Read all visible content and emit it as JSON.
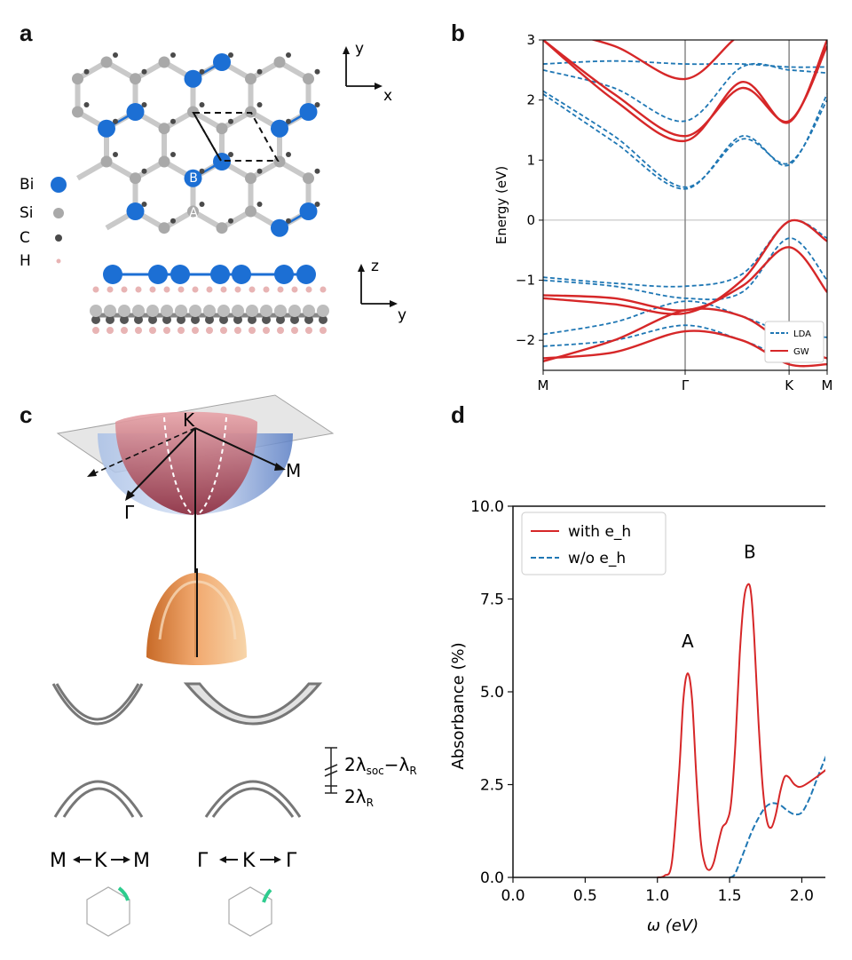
{
  "panels": {
    "a": {
      "label": "a",
      "legend": [
        {
          "label": "Bi",
          "color": "#1c6fd4"
        },
        {
          "label": "Si",
          "color": "#a9a9a9"
        },
        {
          "label": "C",
          "color": "#4a4a4a"
        },
        {
          "label": "H",
          "color": "#e8b4b4"
        }
      ],
      "site_labels": [
        "B",
        "A"
      ],
      "axes_top": {
        "vertical": "y",
        "horizontal": "x"
      },
      "axes_side": {
        "vertical": "z",
        "horizontal": "y"
      }
    },
    "b": {
      "label": "b"
    },
    "c": {
      "label": "c",
      "cone_labels": {
        "top": "K",
        "right": "M",
        "left": "Γ"
      },
      "path_left": {
        "l": "M",
        "c": "K",
        "r": "M"
      },
      "path_right": {
        "l": "Γ",
        "c": "K",
        "r": "Γ"
      },
      "gap_labels": {
        "upper_base": "2λ",
        "upper_sub": "soc",
        "upper_mid": "−λ",
        "upper_sub2": "R",
        "lower_base": "2λ",
        "lower_sub": "R"
      }
    },
    "d": {
      "label": "d"
    }
  },
  "chart_data": [
    {
      "panel": "b",
      "type": "line",
      "ylabel": "Energy (eV)",
      "ylim": [
        -2.5,
        3
      ],
      "yticks": [
        "−2",
        "−1",
        "0",
        "1",
        "2",
        "3"
      ],
      "ytick_values": [
        -2,
        -1,
        0,
        1,
        2,
        3
      ],
      "xticks": [
        "M",
        "Γ",
        "K",
        "M"
      ],
      "xtick_positions": [
        0,
        0.5,
        0.866,
        1.0
      ],
      "legend": [
        "LDA",
        "GW"
      ],
      "series": [
        {
          "name": "GW",
          "style": "solid",
          "color": "#d62728",
          "bands": [
            {
              "x": [
                0,
                0.25,
                0.5,
                0.7,
                0.866,
                1.0
              ],
              "y": [
                -1.3,
                -1.4,
                -1.55,
                -1.0,
                -0.02,
                -0.35
              ]
            },
            {
              "x": [
                0,
                0.25,
                0.5,
                0.7,
                0.866,
                1.0
              ],
              "y": [
                -1.25,
                -1.3,
                -1.5,
                -1.1,
                -0.45,
                -1.2
              ]
            },
            {
              "x": [
                0,
                0.25,
                0.5,
                0.7,
                0.866,
                1.0
              ],
              "y": [
                -2.35,
                -2.0,
                -1.5,
                -1.6,
                -2.1,
                -2.3
              ]
            },
            {
              "x": [
                0,
                0.25,
                0.5,
                0.7,
                0.866,
                1.0
              ],
              "y": [
                -2.3,
                -2.2,
                -1.85,
                -2.0,
                -2.4,
                -2.4
              ]
            },
            {
              "x": [
                0,
                0.25,
                0.5,
                0.7,
                0.866,
                1.0
              ],
              "y": [
                3.0,
                2.0,
                1.32,
                2.3,
                1.63,
                3.0
              ]
            },
            {
              "x": [
                0,
                0.25,
                0.5,
                0.7,
                0.866,
                1.0
              ],
              "y": [
                3.0,
                2.1,
                1.4,
                2.2,
                1.65,
                2.9
              ]
            },
            {
              "x": [
                0,
                0.25,
                0.5,
                0.7,
                0.866,
                1.0
              ],
              "y": [
                3.2,
                2.9,
                2.35,
                3.1,
                3.2,
                3.2
              ]
            }
          ]
        },
        {
          "name": "LDA",
          "style": "dashed",
          "color": "#1f77b4",
          "bands": [
            {
              "x": [
                0,
                0.25,
                0.5,
                0.7,
                0.866,
                1.0
              ],
              "y": [
                -0.95,
                -1.05,
                -1.1,
                -0.9,
                -0.02,
                -0.3
              ]
            },
            {
              "x": [
                0,
                0.25,
                0.5,
                0.7,
                0.866,
                1.0
              ],
              "y": [
                -1.0,
                -1.1,
                -1.3,
                -1.2,
                -0.3,
                -1.0
              ]
            },
            {
              "x": [
                0,
                0.25,
                0.5,
                0.7,
                0.866,
                1.0
              ],
              "y": [
                -1.9,
                -1.7,
                -1.35,
                -1.6,
                -1.9,
                -1.95
              ]
            },
            {
              "x": [
                0,
                0.25,
                0.5,
                0.7,
                0.866,
                1.0
              ],
              "y": [
                -2.1,
                -2.0,
                -1.75,
                -2.0,
                -2.3,
                -2.3
              ]
            },
            {
              "x": [
                0,
                0.25,
                0.5,
                0.7,
                0.866,
                1.0
              ],
              "y": [
                2.1,
                1.3,
                0.52,
                1.4,
                0.92,
                2.1
              ]
            },
            {
              "x": [
                0,
                0.25,
                0.5,
                0.7,
                0.866,
                1.0
              ],
              "y": [
                2.15,
                1.4,
                0.55,
                1.35,
                0.95,
                2.0
              ]
            },
            {
              "x": [
                0,
                0.25,
                0.5,
                0.7,
                0.866,
                1.0
              ],
              "y": [
                2.5,
                2.2,
                1.65,
                2.55,
                2.5,
                2.45
              ]
            },
            {
              "x": [
                0,
                0.25,
                0.5,
                0.7,
                0.866,
                1.0
              ],
              "y": [
                2.6,
                2.65,
                2.6,
                2.6,
                2.55,
                2.55
              ]
            }
          ]
        }
      ]
    },
    {
      "panel": "d",
      "type": "line",
      "xlabel": "ω (eV)",
      "ylabel": "Absorbance (%)",
      "xlim": [
        0.0,
        2.2
      ],
      "ylim": [
        0.0,
        10.0
      ],
      "xticks": [
        "0.0",
        "0.5",
        "1.0",
        "1.5",
        "2.0"
      ],
      "xtick_values": [
        0.0,
        0.5,
        1.0,
        1.5,
        2.0
      ],
      "yticks": [
        "0.0",
        "2.5",
        "5.0",
        "7.5",
        "10.0"
      ],
      "ytick_values": [
        0.0,
        2.5,
        5.0,
        7.5,
        10.0
      ],
      "annotations": [
        {
          "text": "A",
          "x": 1.21,
          "y": 6.2
        },
        {
          "text": "B",
          "x": 1.64,
          "y": 8.6
        }
      ],
      "series": [
        {
          "name": "with e_h",
          "style": "solid",
          "color": "#d62728",
          "x": [
            1.0,
            1.05,
            1.1,
            1.15,
            1.18,
            1.21,
            1.24,
            1.27,
            1.3,
            1.33,
            1.36,
            1.39,
            1.42,
            1.45,
            1.48,
            1.51,
            1.54,
            1.57,
            1.6,
            1.63,
            1.65,
            1.67,
            1.7,
            1.73,
            1.76,
            1.79,
            1.82,
            1.85,
            1.88,
            1.91,
            1.95,
            2.0,
            2.1,
            2.2
          ],
          "y": [
            0.0,
            0.05,
            0.4,
            2.8,
            4.8,
            5.5,
            4.8,
            2.7,
            1.0,
            0.35,
            0.2,
            0.4,
            0.9,
            1.35,
            1.5,
            2.0,
            3.6,
            6.0,
            7.5,
            7.9,
            7.6,
            6.5,
            4.2,
            2.4,
            1.5,
            1.35,
            1.7,
            2.3,
            2.7,
            2.7,
            2.5,
            2.45,
            2.7,
            3.0
          ]
        },
        {
          "name": "w/o e_h",
          "style": "dashed",
          "color": "#1f77b4",
          "x": [
            1.5,
            1.53,
            1.56,
            1.6,
            1.65,
            1.7,
            1.75,
            1.8,
            1.85,
            1.9,
            1.95,
            2.0,
            2.05,
            2.1,
            2.15,
            2.2
          ],
          "y": [
            0.0,
            0.05,
            0.3,
            0.7,
            1.2,
            1.6,
            1.9,
            2.0,
            1.95,
            1.8,
            1.7,
            1.75,
            2.1,
            2.6,
            3.1,
            3.55
          ]
        }
      ]
    }
  ]
}
